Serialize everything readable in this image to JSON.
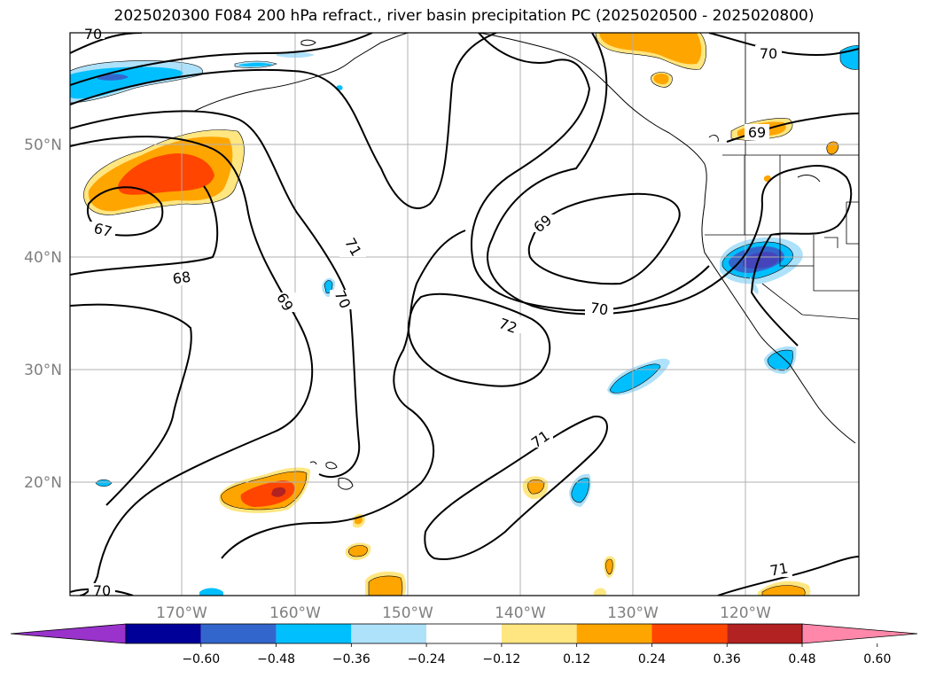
{
  "title": "2025020300 F084 200 hPa refract., river basin precipitation PC (2025020500 - 2025020800)",
  "lat_labels": [
    "50°N",
    "40°N",
    "30°N",
    "20°N"
  ],
  "lon_labels": [
    "170°W",
    "160°W",
    "150°W",
    "140°W",
    "130°W",
    "120°W"
  ],
  "colorbar": {
    "colors": [
      "#9933cc",
      "#000099",
      "#3366cc",
      "#00bfff",
      "#aee1fa",
      "#ffffff",
      "#ffe680",
      "#ffa500",
      "#ff4500",
      "#b22222",
      "#ff88aa"
    ],
    "tick_labels": [
      "−0.60",
      "−0.48",
      "−0.36",
      "−0.24",
      "−0.12",
      "0.12",
      "0.24",
      "0.36",
      "0.48",
      "0.60"
    ]
  },
  "contour_labels": [
    "70",
    "70",
    "69",
    "67",
    "68",
    "69",
    "71",
    "70",
    "69",
    "70",
    "72",
    "71",
    "71",
    "70"
  ],
  "fill_colors": {
    "neg_light": "#aee1fa",
    "neg_mid": "#00bfff",
    "neg_dark": "#3366cc",
    "neg_darker": "#4444bb",
    "pos_light": "#ffe680",
    "pos_mid": "#ffa500",
    "pos_dark": "#ff4500",
    "pos_darker": "#b22222"
  }
}
